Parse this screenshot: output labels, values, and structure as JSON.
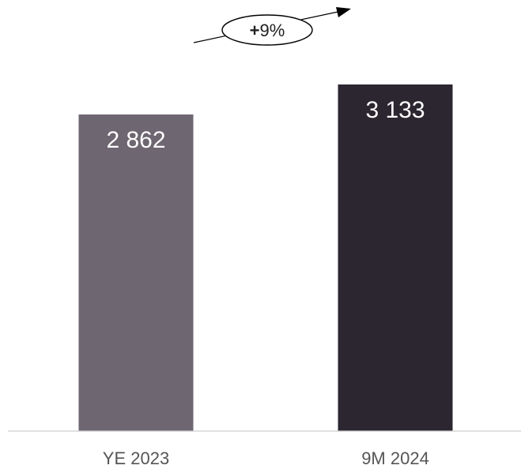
{
  "chart_data": {
    "type": "bar",
    "categories": [
      "YE 2023",
      "9M 2024"
    ],
    "values": [
      2862,
      3133
    ],
    "value_labels": [
      "2 862",
      "3 133"
    ],
    "colors": [
      "#6e6670",
      "#2c2631"
    ],
    "ylim": [
      0,
      3133
    ],
    "grid": false,
    "title": "",
    "xlabel": "",
    "ylabel": "",
    "annotation": {
      "prefix": "+",
      "text": "9%"
    }
  },
  "colors": {
    "baseline": "#cfcfcf",
    "arrow": "#000000"
  }
}
